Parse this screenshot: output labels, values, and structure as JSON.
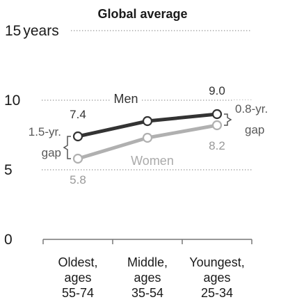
{
  "chart_data": {
    "type": "line",
    "title": "Global average",
    "y_unit": "years",
    "ylim": [
      0,
      15
    ],
    "yticks": [
      0,
      5,
      10,
      15
    ],
    "grid": "dotted",
    "categories": [
      {
        "lines": [
          "Oldest,",
          "ages",
          "55-74"
        ]
      },
      {
        "lines": [
          "Middle,",
          "ages",
          "35-54"
        ]
      },
      {
        "lines": [
          "Youngest,",
          "ages",
          "25-34"
        ]
      }
    ],
    "series": [
      {
        "name": "Men",
        "values": [
          7.4,
          8.5,
          9.0
        ],
        "color": "#333333",
        "labels": [
          "7.4",
          "",
          "9.0"
        ]
      },
      {
        "name": "Women",
        "values": [
          5.8,
          7.3,
          8.2
        ],
        "color": "#b0b0b0",
        "labels": [
          "5.8",
          "",
          "8.2"
        ]
      }
    ],
    "annotations": {
      "left_gap": [
        "1.5-yr.",
        "gap"
      ],
      "right_gap": [
        "0.8-yr.",
        "gap"
      ]
    }
  }
}
